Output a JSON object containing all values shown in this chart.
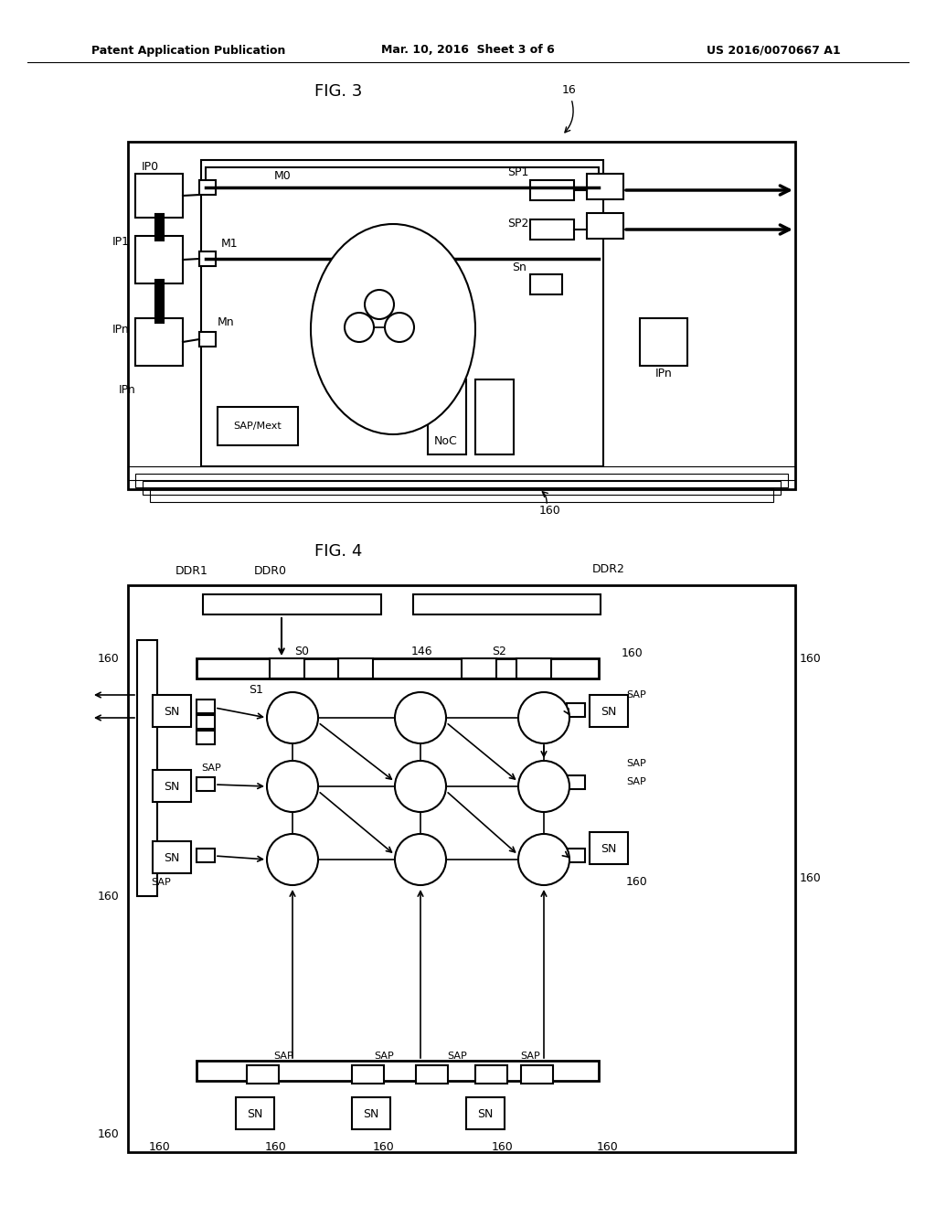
{
  "bg_color": "#ffffff",
  "header_left": "Patent Application Publication",
  "header_center": "Mar. 10, 2016  Sheet 3 of 6",
  "header_right": "US 2016/0070667 A1",
  "fig3_title": "FIG. 3",
  "fig4_title": "FIG. 4",
  "label_16": "16",
  "label_160": "160"
}
